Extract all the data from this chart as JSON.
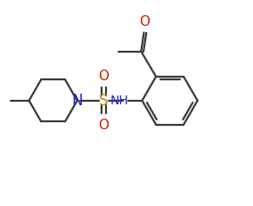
{
  "bg_color": "#ffffff",
  "line_color": "#3a3a3a",
  "bond_lw": 1.6,
  "font_size": 9,
  "o_color": "#cc2200",
  "n_color": "#2222cc",
  "s_color": "#b8860b",
  "xlim": [
    0,
    10
  ],
  "ylim": [
    0,
    8.5
  ]
}
